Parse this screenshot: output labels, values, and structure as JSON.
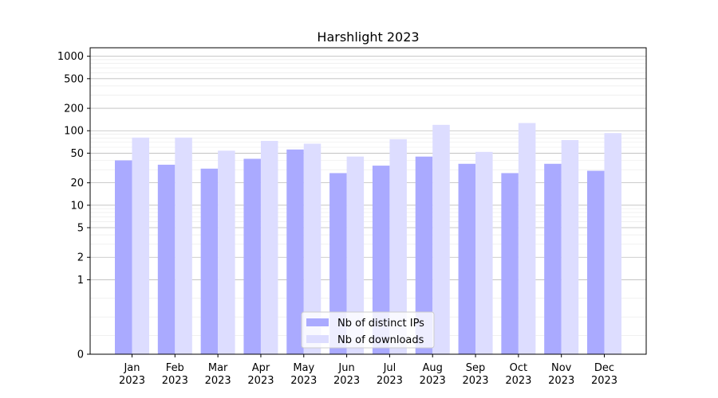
{
  "chart_data": {
    "type": "bar",
    "title": "Harshlight 2023",
    "xlabel": "",
    "ylabel": "",
    "yscale": "symlog",
    "ylim": [
      0,
      1300
    ],
    "yticks": [
      0,
      1,
      2,
      5,
      10,
      20,
      50,
      100,
      200,
      500,
      1000
    ],
    "categories": [
      "Jan\n2023",
      "Feb\n2023",
      "Mar\n2023",
      "Apr\n2023",
      "May\n2023",
      "Jun\n2023",
      "Jul\n2023",
      "Aug\n2023",
      "Sep\n2023",
      "Oct\n2023",
      "Nov\n2023",
      "Dec\n2023"
    ],
    "series": [
      {
        "name": "Nb of distinct IPs",
        "color": "#aaaaff",
        "values": [
          40,
          35,
          31,
          42,
          56,
          27,
          34,
          45,
          36,
          27,
          36,
          29
        ]
      },
      {
        "name": "Nb of downloads",
        "color": "#ddddff",
        "values": [
          81,
          81,
          54,
          73,
          67,
          45,
          77,
          120,
          52,
          127,
          75,
          93
        ]
      }
    ],
    "legend": "lower-center",
    "grid": true
  }
}
